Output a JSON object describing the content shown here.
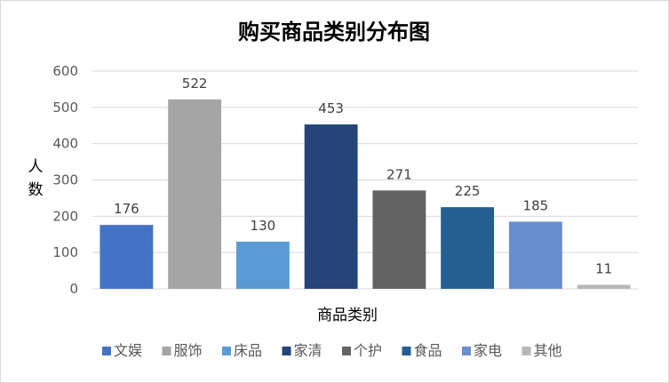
{
  "chart_data": {
    "type": "bar",
    "title": "购买商品类别分布图",
    "xlabel": "商品类别",
    "ylabel": "人数",
    "ylim": [
      0,
      600
    ],
    "yticks": [
      0,
      100,
      200,
      300,
      400,
      500,
      600
    ],
    "grid": true,
    "legend_position": "bottom",
    "categories": [
      "文娱",
      "服饰",
      "床品",
      "家清",
      "个护",
      "食品",
      "家电",
      "其他"
    ],
    "values": [
      176,
      522,
      130,
      453,
      271,
      225,
      185,
      11
    ],
    "colors": [
      "#4472c4",
      "#a5a5a5",
      "#5b9bd5",
      "#264478",
      "#636363",
      "#255e91",
      "#698ed0",
      "#b7b7b7"
    ]
  }
}
